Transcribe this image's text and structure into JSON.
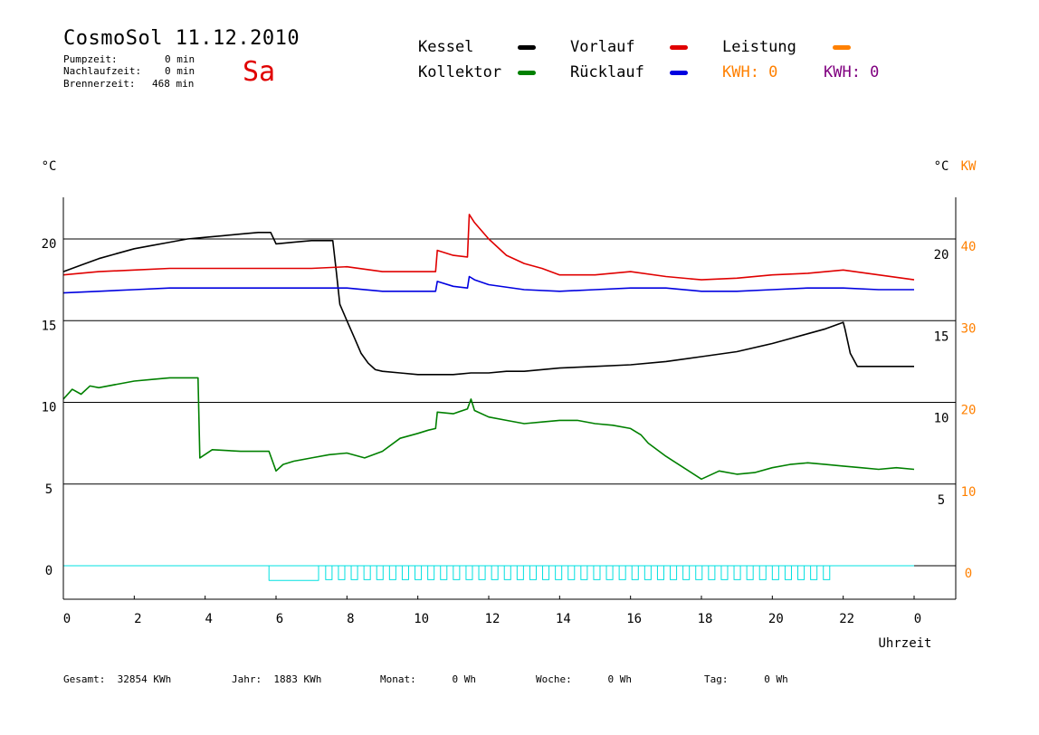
{
  "header": {
    "title": "CosmoSol 11.12.2010",
    "day": "Sa",
    "stats": [
      {
        "label": "Pumpzeit:",
        "value": "0 min"
      },
      {
        "label": "Nachlaufzeit:",
        "value": "0 min"
      },
      {
        "label": "Brennerzeit:",
        "value": "468 min"
      }
    ]
  },
  "legend": {
    "kessel": "Kessel",
    "kollektor": "Kollektor",
    "vorlauf": "Vorlauf",
    "ruecklauf": "Rücklauf",
    "leistung": "Leistung",
    "kwh_orange": "KWH: 0",
    "kwh_purple": "KWH: 0"
  },
  "footer": {
    "gesamt": "Gesamt:  32854 KWh",
    "jahr": "Jahr:  1883 KWh",
    "monat": "Monat:      0 Wh",
    "woche": "Woche:      0 Wh",
    "tag": "Tag:      0 Wh"
  },
  "colors": {
    "kessel": "#000000",
    "kollektor": "#008000",
    "vorlauf": "#e00000",
    "ruecklauf": "#0000e0",
    "leistung": "#ff8000",
    "kwh_purple": "#800080",
    "pump": "#00e0e0"
  },
  "chart_data": {
    "type": "line",
    "xlabel": "Uhrzeit",
    "ylabel_left": "°C",
    "ylabel_right": "°C",
    "ylabel_right_power": "KW",
    "x_ticks": [
      "0",
      "2",
      "4",
      "6",
      "8",
      "10",
      "12",
      "14",
      "16",
      "18",
      "20",
      "22",
      "0"
    ],
    "xlim": [
      0,
      24
    ],
    "ylim": [
      -2,
      22.5
    ],
    "y_ticks_left": [
      "20",
      "15",
      "10",
      "5",
      "0"
    ],
    "y_ticks_right": [
      "20",
      "15",
      "10",
      "5"
    ],
    "y_ticks_power": [
      "40",
      "30",
      "20",
      "10",
      "0"
    ],
    "gridlines": [
      20,
      15,
      10,
      5,
      0
    ],
    "series": [
      {
        "name": "Kessel",
        "color_key": "kessel",
        "x": [
          0,
          0.5,
          1,
          1.5,
          2,
          2.5,
          3,
          3.5,
          4,
          4.5,
          5,
          5.5,
          5.85,
          6.0,
          6.5,
          7.0,
          7.5,
          7.6,
          7.7,
          7.8,
          8.0,
          8.2,
          8.4,
          8.6,
          8.8,
          9.0,
          9.5,
          10,
          10.5,
          11,
          11.5,
          12,
          12.5,
          13,
          14,
          15,
          16,
          17,
          18,
          19,
          20,
          20.5,
          21,
          21.5,
          22.0,
          22.05,
          22.2,
          22.4,
          23,
          24
        ],
        "y": [
          18.0,
          18.4,
          18.8,
          19.1,
          19.4,
          19.6,
          19.8,
          20.0,
          20.1,
          20.2,
          20.3,
          20.4,
          20.4,
          19.7,
          19.8,
          19.9,
          19.9,
          19.9,
          18.0,
          16.0,
          15.0,
          14.0,
          13.0,
          12.4,
          12.0,
          11.9,
          11.8,
          11.7,
          11.7,
          11.7,
          11.8,
          11.8,
          11.9,
          11.9,
          12.1,
          12.2,
          12.3,
          12.5,
          12.8,
          13.1,
          13.6,
          13.9,
          14.2,
          14.5,
          14.9,
          14.5,
          13.0,
          12.2,
          12.2,
          12.2
        ]
      },
      {
        "name": "Vorlauf",
        "color_key": "vorlauf",
        "x": [
          0,
          1,
          2,
          3,
          4,
          5,
          6,
          7,
          8,
          9,
          10,
          10.5,
          10.55,
          11,
          11.4,
          11.45,
          11.6,
          12,
          12.5,
          13,
          13.5,
          14,
          14.5,
          15,
          16,
          17,
          18,
          19,
          20,
          21,
          22,
          23,
          24
        ],
        "y": [
          17.8,
          18.0,
          18.1,
          18.2,
          18.2,
          18.2,
          18.2,
          18.2,
          18.3,
          18.0,
          18.0,
          18.0,
          19.3,
          19.0,
          18.9,
          21.5,
          21.0,
          20.0,
          19.0,
          18.5,
          18.2,
          17.8,
          17.8,
          17.8,
          18.0,
          17.7,
          17.5,
          17.6,
          17.8,
          17.9,
          18.1,
          17.8,
          17.5
        ]
      },
      {
        "name": "Rücklauf",
        "color_key": "ruecklauf",
        "x": [
          0,
          1,
          2,
          3,
          4,
          5,
          6,
          7,
          8,
          9,
          10,
          10.5,
          10.55,
          11,
          11.4,
          11.45,
          11.6,
          12,
          13,
          14,
          15,
          16,
          17,
          18,
          19,
          20,
          21,
          22,
          23,
          24
        ],
        "y": [
          16.7,
          16.8,
          16.9,
          17.0,
          17.0,
          17.0,
          17.0,
          17.0,
          17.0,
          16.8,
          16.8,
          16.8,
          17.4,
          17.1,
          17.0,
          17.7,
          17.5,
          17.2,
          16.9,
          16.8,
          16.9,
          17.0,
          17.0,
          16.8,
          16.8,
          16.9,
          17.0,
          17.0,
          16.9,
          16.9
        ]
      },
      {
        "name": "Kollektor",
        "color_key": "kollektor",
        "x": [
          0,
          0.25,
          0.5,
          0.75,
          1,
          1.5,
          2,
          2.5,
          3,
          3.5,
          3.8,
          3.85,
          4.2,
          5,
          5.8,
          6.0,
          6.2,
          6.5,
          7,
          7.5,
          8,
          8.5,
          9,
          9.5,
          10,
          10.3,
          10.5,
          10.55,
          11,
          11.4,
          11.5,
          11.6,
          12,
          12.5,
          13,
          13.5,
          14,
          14.5,
          15,
          15.5,
          16,
          16.3,
          16.5,
          17,
          17.5,
          18,
          18.5,
          19,
          19.5,
          20,
          20.5,
          21,
          21.5,
          22,
          22.5,
          23,
          23.5,
          24
        ],
        "y": [
          10.2,
          10.8,
          10.5,
          11.0,
          10.9,
          11.1,
          11.3,
          11.4,
          11.5,
          11.5,
          11.5,
          6.6,
          7.1,
          7.0,
          7.0,
          5.8,
          6.2,
          6.4,
          6.6,
          6.8,
          6.9,
          6.6,
          7.0,
          7.8,
          8.1,
          8.3,
          8.4,
          9.4,
          9.3,
          9.6,
          10.2,
          9.5,
          9.1,
          8.9,
          8.7,
          8.8,
          8.9,
          8.9,
          8.7,
          8.6,
          8.4,
          8.0,
          7.5,
          6.7,
          6.0,
          5.3,
          5.8,
          5.6,
          5.7,
          6.0,
          6.2,
          6.3,
          6.2,
          6.1,
          6.0,
          5.9,
          6.0,
          5.9
        ]
      },
      {
        "name": "Leistung",
        "color_key": "pump",
        "x": [
          0,
          5.8,
          5.8,
          7.2,
          7.2,
          24
        ],
        "y": [
          0,
          0,
          -0.9,
          -0.9,
          0,
          0
        ]
      }
    ]
  }
}
